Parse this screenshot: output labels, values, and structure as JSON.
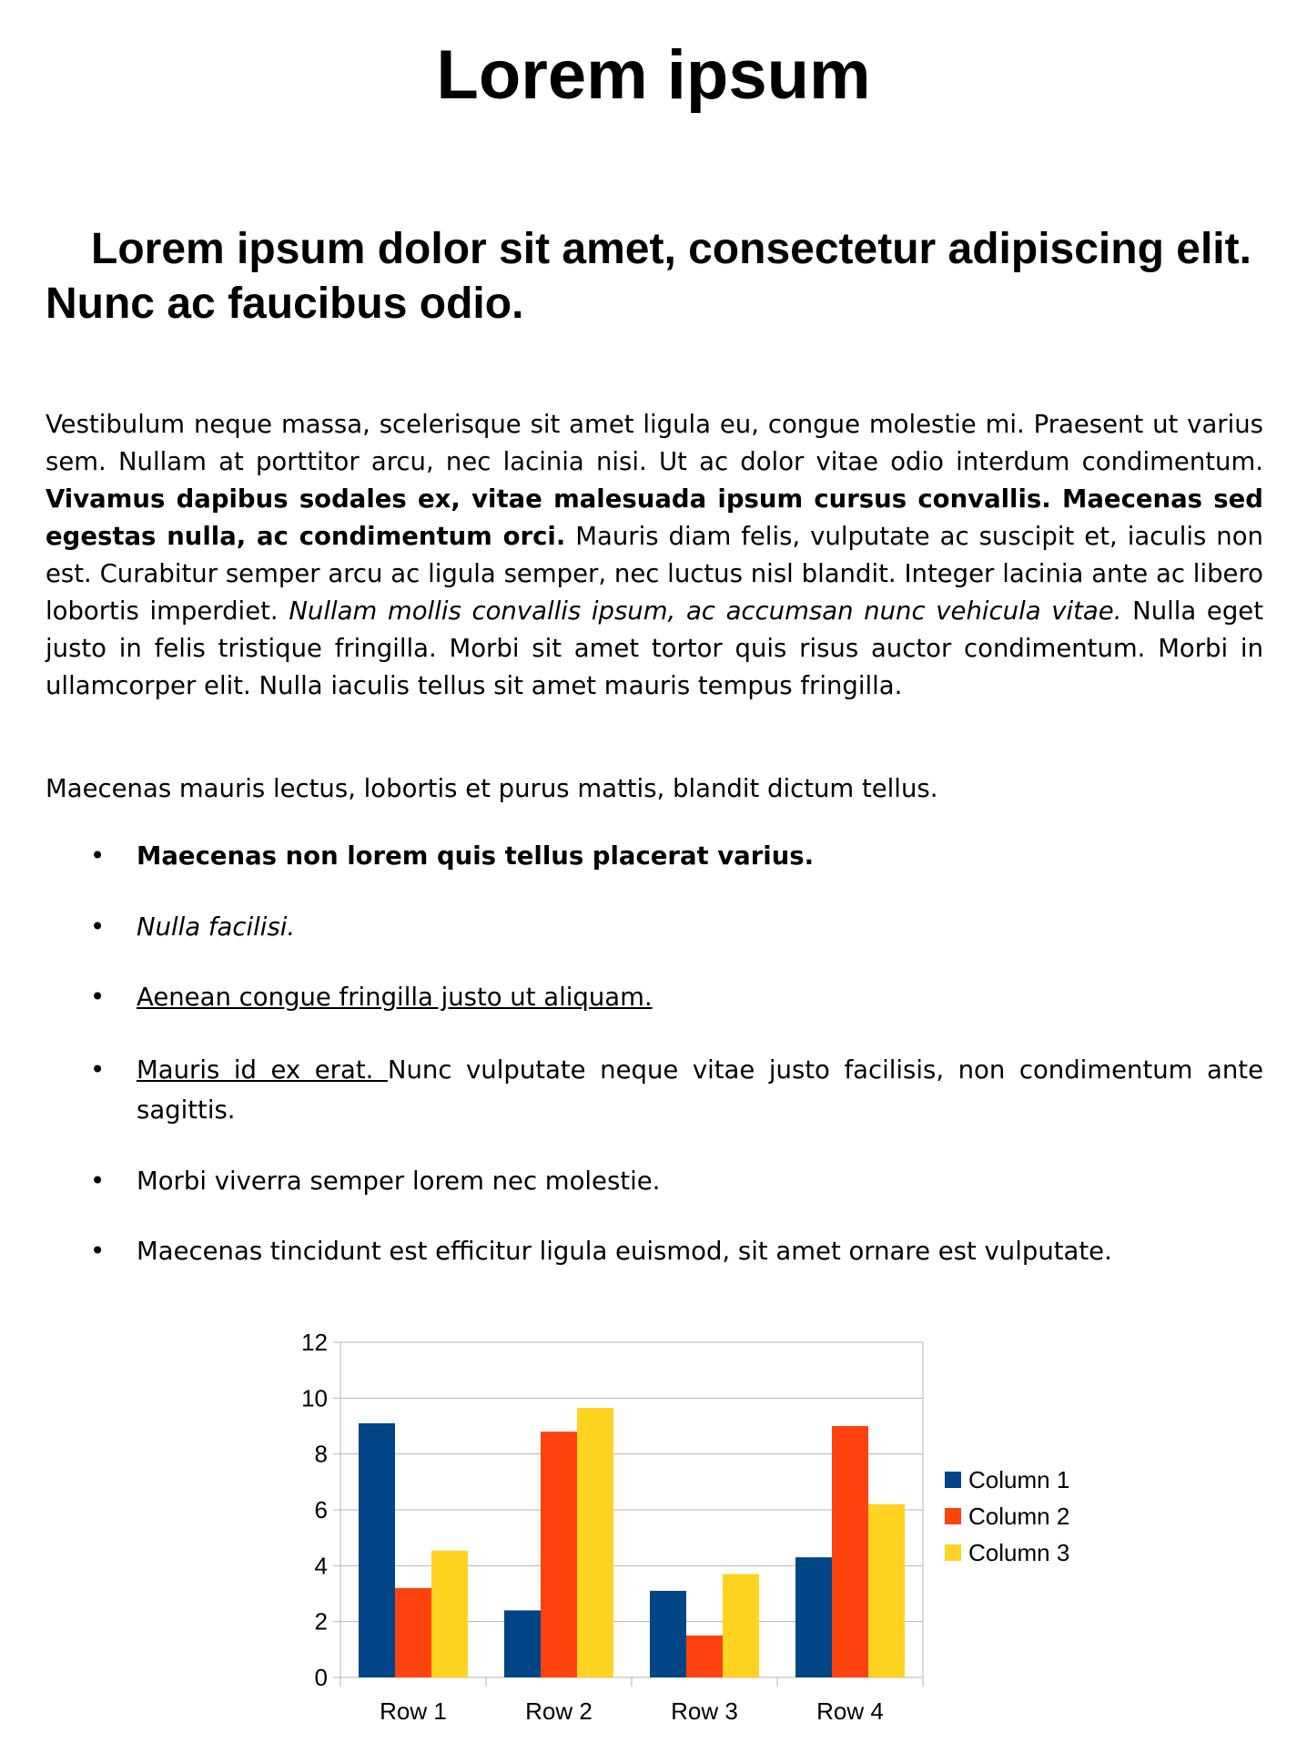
{
  "document": {
    "title": "Lorem ipsum",
    "subtitle": "Lorem ipsum dolor sit amet, consectetur adipiscing elit. Nunc ac faucibus odio.",
    "paragraph1": {
      "run1": "Vestibulum neque massa, scelerisque sit amet ligula eu, congue molestie mi. Praesent ut varius sem. Nullam at porttitor arcu, nec lacinia nisi. Ut ac dolor vitae odio interdum condimentum. ",
      "bold": "Vivamus dapibus sodales ex, vitae malesuada ipsum cursus convallis. Maecenas sed egestas nulla, ac condimentum orci.",
      "run2": " Mauris diam felis, vulputate ac suscipit et, iaculis non est. Curabitur semper arcu ac ligula semper, nec luctus nisl blandit. Integer lacinia ante ac libero lobortis imperdiet. ",
      "italic": "Nullam mollis convallis ipsum, ac accumsan nunc vehicula vitae.",
      "run3": " Nulla eget justo in felis tristique fringilla. Morbi sit amet tortor quis risus auctor condimentum. Morbi in ullamcorper elit. Nulla iaculis tellus sit amet mauris tempus fringilla."
    },
    "paragraph2": "Maecenas mauris lectus, lobortis et purus mattis, blandit dictum tellus.",
    "bullet_symbol": "•",
    "bullets": [
      {
        "text": "Maecenas non lorem quis tellus placerat varius."
      },
      {
        "text": "Nulla facilisi."
      },
      {
        "text": "Aenean congue fringilla justo ut aliquam. "
      },
      {
        "underlined": "Mauris id ex erat. ",
        "rest": "Nunc vulputate neque vitae justo facilisis, non condimentum ante sagittis."
      },
      {
        "text": "Morbi viverra semper lorem nec molestie."
      },
      {
        "text": "Maecenas tincidunt est efficitur ligula euismod, sit amet ornare est vulputate."
      }
    ]
  },
  "chart_data": {
    "type": "bar",
    "categories": [
      "Row 1",
      "Row 2",
      "Row 3",
      "Row 4"
    ],
    "series": [
      {
        "name": "Column 1",
        "values": [
          9.1,
          2.4,
          3.1,
          4.3
        ],
        "color": "#004586"
      },
      {
        "name": "Column 2",
        "values": [
          3.2,
          8.8,
          1.5,
          9.0
        ],
        "color": "#ff420e"
      },
      {
        "name": "Column 3",
        "values": [
          4.54,
          9.65,
          3.7,
          6.2
        ],
        "color": "#ffd320"
      }
    ],
    "ylim": [
      0,
      12
    ],
    "yticks": [
      "0",
      "2",
      "4",
      "6",
      "8",
      "10",
      "12"
    ],
    "grid": true,
    "legend": "right"
  }
}
